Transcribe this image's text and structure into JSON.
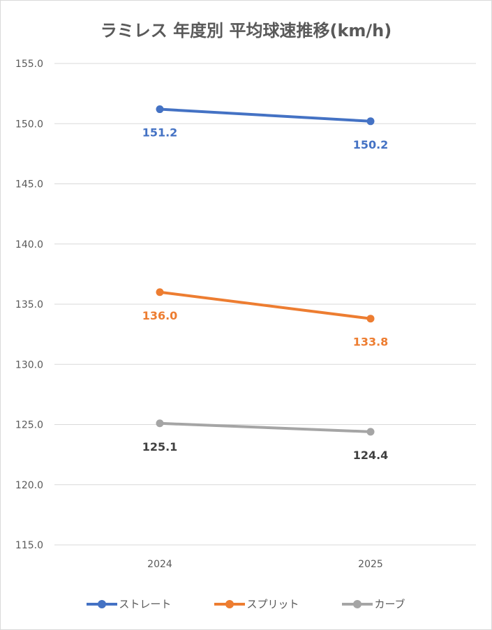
{
  "chart_data": {
    "type": "line",
    "title": "ラミレス 年度別 平均球速推移(km/h)",
    "categories": [
      "2024",
      "2025"
    ],
    "ylim": [
      115,
      155
    ],
    "yticks": [
      "115.0",
      "120.0",
      "125.0",
      "130.0",
      "135.0",
      "140.0",
      "145.0",
      "150.0",
      "155.0"
    ],
    "grid": true,
    "legend": "bottom",
    "series": [
      {
        "name": "ストレート",
        "values": [
          151.2,
          150.2
        ],
        "labels": [
          "151.2",
          "150.2"
        ],
        "color": "#4472c4",
        "label_color": "#4472c4"
      },
      {
        "name": "スプリット",
        "values": [
          136.0,
          133.8
        ],
        "labels": [
          "136.0",
          "133.8"
        ],
        "color": "#ed7d31",
        "label_color": "#ed7d31"
      },
      {
        "name": "カーブ",
        "values": [
          125.1,
          124.4
        ],
        "labels": [
          "125.1",
          "124.4"
        ],
        "color": "#a5a5a5",
        "label_color": "#404040"
      }
    ]
  }
}
